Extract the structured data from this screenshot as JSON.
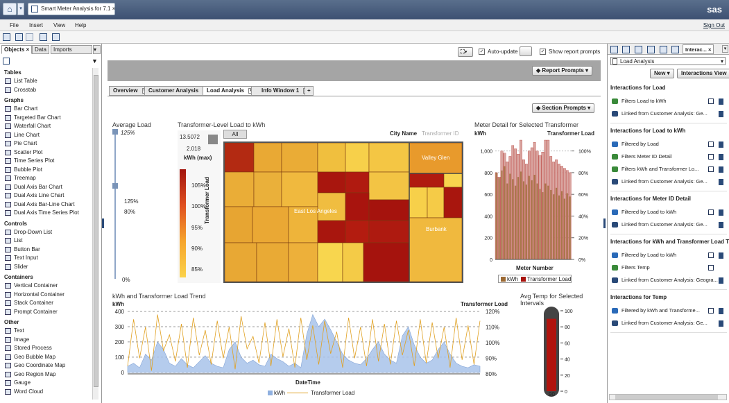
{
  "app": {
    "doc_tab": "Smart Meter Analysis for 7.1",
    "brand": "sas",
    "sign_out": "Sign Out"
  },
  "menu": [
    "File",
    "Insert",
    "View",
    "Help"
  ],
  "left": {
    "tabs": [
      "Objects",
      "Data",
      "Imports"
    ],
    "sections": [
      {
        "title": "Tables",
        "items": [
          "List Table",
          "Crosstab"
        ]
      },
      {
        "title": "Graphs",
        "items": [
          "Bar Chart",
          "Targeted Bar Chart",
          "Waterfall Chart",
          "Line Chart",
          "Pie Chart",
          "Scatter Plot",
          "Time Series Plot",
          "Bubble Plot",
          "Treemap",
          "Dual Axis Bar Chart",
          "Dual Axis Line Chart",
          "Dual Axis Bar-Line Chart",
          "Dual Axis Time Series Plot"
        ]
      },
      {
        "title": "Controls",
        "items": [
          "Drop-Down List",
          "List",
          "Button Bar",
          "Text Input",
          "Slider"
        ]
      },
      {
        "title": "Containers",
        "items": [
          "Vertical Container",
          "Horizontal Container",
          "Stack Container",
          "Prompt Container"
        ]
      },
      {
        "title": "Other",
        "items": [
          "Text",
          "Image",
          "Stored Process",
          "Geo Bubble Map",
          "Geo Coordinate Map",
          "Geo Region Map",
          "Gauge",
          "Word Cloud"
        ]
      }
    ]
  },
  "center": {
    "auto_update": "Auto-update",
    "show_prompts": "Show report prompts",
    "report_prompts": "Report Prompts",
    "section_prompts": "Section Prompts",
    "tabs": [
      "Overview",
      "Customer Analysis",
      "Load Analysis",
      "Info Window 1"
    ],
    "avg_load": {
      "title": "Average Load",
      "top": "125%",
      "mid1": "125%",
      "mid2": "80%",
      "bottom": "0%",
      "level_top": 1.25,
      "level_bottom": 0
    },
    "treemap": {
      "title": "Transformer-Level Load to kWh",
      "legend_max": "13.5072",
      "legend_min": "2.018",
      "legend_label": "kWh (max)",
      "color_label": "Transformer Load",
      "ticks": [
        "105%",
        "100%",
        "95%",
        "90%",
        "85%"
      ],
      "all": "All",
      "hier1": "City Name",
      "hier2": "Transformer ID",
      "labels": [
        "Valley Glen",
        "East Los Angeles",
        "Burbank"
      ]
    },
    "meter": {
      "title": "Meter Detail for Selected Transformer",
      "y_left": "kWh",
      "y_right": "Transformer Load",
      "x": "Meter Number",
      "legend": [
        "kWh",
        "Transformer Load"
      ]
    },
    "trend": {
      "title": "kWh and Transformer Load Trend",
      "y_left": "kWh",
      "y_right": "Transformer Load",
      "x": "DateTime",
      "legend": [
        "kWh",
        "Transformer Load"
      ]
    },
    "gauge": {
      "title": "Avg Temp for Selected Intervals",
      "value": "90"
    }
  },
  "chart_data": [
    {
      "type": "bar",
      "title": "Meter Detail for Selected Transformer",
      "xlabel": "Meter Number",
      "ylabel": "kWh",
      "ylim": [
        0,
        1100
      ],
      "y2lim": [
        0,
        1.1
      ],
      "y_ticks": [
        0,
        200,
        400,
        600,
        800,
        1000
      ],
      "y2_ticks": [
        "0%",
        "20%",
        "40%",
        "60%",
        "80%",
        "100%"
      ],
      "series": [
        {
          "name": "kWh",
          "values": [
            800,
            750,
            820,
            860,
            700,
            790,
            740,
            680,
            760,
            810,
            720,
            690,
            770,
            730,
            780,
            700,
            650,
            620,
            700,
            680,
            640,
            600,
            660,
            590,
            630,
            560,
            610,
            580
          ]
        },
        {
          "name": "Transformer Load",
          "values": [
            0.8,
            0.76,
            1.0,
            0.98,
            0.9,
            0.95,
            1.05,
            1.02,
            0.97,
            1.1,
            0.92,
            0.88,
            1.0,
            1.03,
            1.08,
            1.0,
            0.96,
            0.99,
            1.1,
            1.1,
            0.95,
            0.9,
            0.92,
            0.88,
            0.86,
            0.84,
            0.82,
            0.8
          ]
        }
      ]
    },
    {
      "type": "area",
      "title": "kWh and Transformer Load Trend",
      "xlabel": "DateTime",
      "ylabel": "kWh",
      "ylim": [
        -10,
        400
      ],
      "y_ticks": [
        0,
        100,
        200,
        300,
        400
      ],
      "y2lim": [
        0.8,
        1.2
      ],
      "y2_ticks": [
        "80%",
        "90%",
        "100%",
        "110%",
        "120%"
      ],
      "series": [
        {
          "name": "kWh",
          "values": [
            40,
            60,
            30,
            120,
            80,
            200,
            150,
            60,
            40,
            90,
            50,
            30,
            70,
            110,
            60,
            40,
            30,
            150,
            200,
            100,
            60,
            80,
            50,
            40,
            120,
            90,
            70,
            40,
            60,
            30,
            250,
            380,
            300,
            350,
            280,
            200,
            120,
            80,
            60,
            50,
            90,
            150,
            200,
            120,
            80,
            60,
            240,
            300,
            180,
            100,
            60,
            80,
            150,
            200,
            120,
            60,
            40,
            30,
            50,
            40
          ]
        },
        {
          "name": "Transformer Load",
          "values": [
            0.85,
            1.15,
            0.9,
            1.1,
            0.82,
            1.18,
            0.95,
            1.05,
            0.88,
            1.12,
            0.84,
            1.16,
            0.92,
            1.08,
            0.86,
            1.14,
            0.9,
            1.1,
            0.83,
            1.17,
            0.96,
            1.04,
            0.87,
            1.13,
            0.85,
            1.15,
            0.91,
            1.09,
            0.84,
            1.16,
            0.89,
            1.11,
            0.86,
            1.14,
            0.93,
            1.07,
            0.84,
            1.16,
            0.9,
            1.1,
            0.85,
            1.15,
            0.88,
            1.12,
            0.86,
            1.14,
            0.92,
            1.08,
            0.85,
            1.15,
            0.87,
            1.13,
            0.9,
            1.1,
            0.84,
            1.16,
            0.89,
            1.11,
            0.86,
            1.14
          ]
        }
      ]
    },
    {
      "type": "gauge",
      "title": "Avg Temp for Selected Intervals",
      "value": 90,
      "ylim": [
        0,
        100
      ],
      "ticks": [
        0,
        20,
        40,
        60,
        80,
        100
      ]
    }
  ],
  "right": {
    "dropdown": "Load Analysis",
    "new": "New",
    "view": "Interactions View",
    "tab": "Interac...",
    "groups": [
      {
        "title": "Interactions for Load",
        "items": [
          {
            "t": "Filters Load to kWh",
            "c": "#3a8a3a",
            "e": true
          },
          {
            "t": "Linked from Customer Analysis: Ge...",
            "c": "#2a4a78",
            "e": false
          }
        ]
      },
      {
        "title": "Interactions for Load to kWh",
        "items": [
          {
            "t": "Filtered by Load",
            "c": "#2a6ab8",
            "e": true
          },
          {
            "t": "Filters Meter ID Detail",
            "c": "#3a8a3a",
            "e": true
          },
          {
            "t": "Filters kWh and Transformer Lo...",
            "c": "#3a8a3a",
            "e": true
          },
          {
            "t": "Linked from Customer Analysis: Ge...",
            "c": "#2a4a78",
            "e": false
          }
        ]
      },
      {
        "title": "Interactions for Meter ID Detail",
        "items": [
          {
            "t": "Filtered by Load to kWh",
            "c": "#2a6ab8",
            "e": true
          },
          {
            "t": "Linked from Customer Analysis: Ge...",
            "c": "#2a4a78",
            "e": false
          }
        ]
      },
      {
        "title": "Interactions for kWh and Transformer Load Tre",
        "items": [
          {
            "t": "Filtered by Load to kWh",
            "c": "#2a6ab8",
            "e": true
          },
          {
            "t": "Filters Temp",
            "c": "#3a8a3a",
            "e": true
          },
          {
            "t": "Linked from Customer Analysis: Geogra...",
            "c": "#2a4a78",
            "e": false
          }
        ]
      },
      {
        "title": "Interactions for Temp",
        "items": [
          {
            "t": "Filtered by kWh and Transforme...",
            "c": "#2a6ab8",
            "e": true
          },
          {
            "t": "Linked from Customer Analysis: Ge...",
            "c": "#2a4a78",
            "e": false
          }
        ]
      }
    ]
  }
}
